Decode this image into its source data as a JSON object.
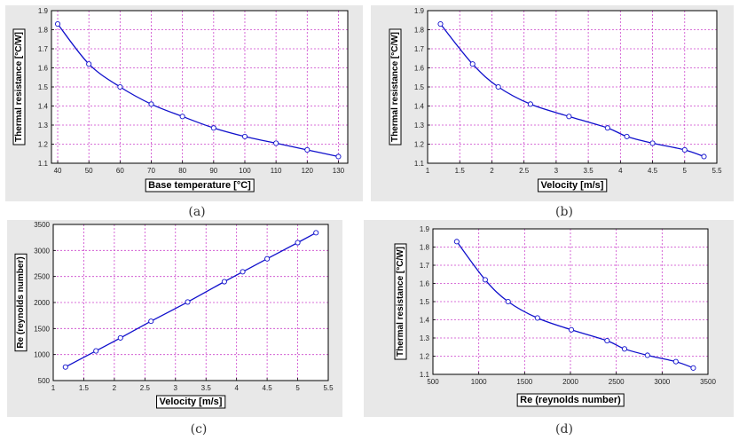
{
  "captions": [
    "(a)",
    "(b)",
    "(c)",
    "(d)"
  ],
  "colors": {
    "line": "#1010cc",
    "grid": "#cc44cc",
    "panel": "#e8e8e8",
    "frame": "#000000"
  },
  "chart_data": [
    {
      "type": "line",
      "title": "",
      "xlabel": "Base temperature [°C]",
      "ylabel": "Thermal resistance [°C/W]",
      "xlim": [
        38,
        133
      ],
      "ylim": [
        1.1,
        1.9
      ],
      "xticks": [
        40,
        50,
        60,
        70,
        80,
        90,
        100,
        110,
        120,
        130
      ],
      "yticks": [
        1.1,
        1.2,
        1.3,
        1.4,
        1.5,
        1.6,
        1.7,
        1.8,
        1.9
      ],
      "grid": true,
      "x": [
        40,
        50,
        60,
        70,
        80,
        90,
        100,
        110,
        120,
        130
      ],
      "y": [
        1.83,
        1.62,
        1.5,
        1.41,
        1.345,
        1.285,
        1.24,
        1.205,
        1.17,
        1.135
      ]
    },
    {
      "type": "line",
      "title": "",
      "xlabel": "Velocity [m/s]",
      "ylabel": "Thermal resistance [°C/W]",
      "xlim": [
        1,
        5.5
      ],
      "ylim": [
        1.1,
        1.9
      ],
      "xticks": [
        1,
        1.5,
        2,
        2.5,
        3,
        3.5,
        4,
        4.5,
        5,
        5.5
      ],
      "yticks": [
        1.1,
        1.2,
        1.3,
        1.4,
        1.5,
        1.6,
        1.7,
        1.8,
        1.9
      ],
      "grid": true,
      "x": [
        1.2,
        1.7,
        2.1,
        2.6,
        3.2,
        3.8,
        4.1,
        4.5,
        5.0,
        5.3
      ],
      "y": [
        1.83,
        1.62,
        1.5,
        1.41,
        1.345,
        1.285,
        1.24,
        1.205,
        1.17,
        1.135
      ]
    },
    {
      "type": "line",
      "title": "",
      "xlabel": "Velocity [m/s]",
      "ylabel": "Re (reynolds number)",
      "xlim": [
        1,
        5.5
      ],
      "ylim": [
        500,
        3500
      ],
      "xticks": [
        1,
        1.5,
        2,
        2.5,
        3,
        3.5,
        4,
        4.5,
        5,
        5.5
      ],
      "yticks": [
        500,
        1000,
        1500,
        2000,
        2500,
        3000,
        3500
      ],
      "grid": true,
      "x": [
        1.2,
        1.7,
        2.1,
        2.6,
        3.2,
        3.8,
        4.1,
        4.5,
        5.0,
        5.3
      ],
      "y": [
        760,
        1070,
        1320,
        1640,
        2010,
        2400,
        2590,
        2840,
        3150,
        3340
      ]
    },
    {
      "type": "line",
      "title": "",
      "xlabel": "Re (reynolds number)",
      "ylabel": "Thermal resistance [°C/W]",
      "xlim": [
        500,
        3500
      ],
      "ylim": [
        1.1,
        1.9
      ],
      "xticks": [
        500,
        1000,
        1500,
        2000,
        2500,
        3000,
        3500
      ],
      "yticks": [
        1.1,
        1.2,
        1.3,
        1.4,
        1.5,
        1.6,
        1.7,
        1.8,
        1.9
      ],
      "grid": true,
      "x": [
        760,
        1070,
        1320,
        1640,
        2010,
        2400,
        2590,
        2840,
        3150,
        3340
      ],
      "y": [
        1.83,
        1.62,
        1.5,
        1.41,
        1.345,
        1.285,
        1.24,
        1.205,
        1.17,
        1.135
      ]
    }
  ]
}
